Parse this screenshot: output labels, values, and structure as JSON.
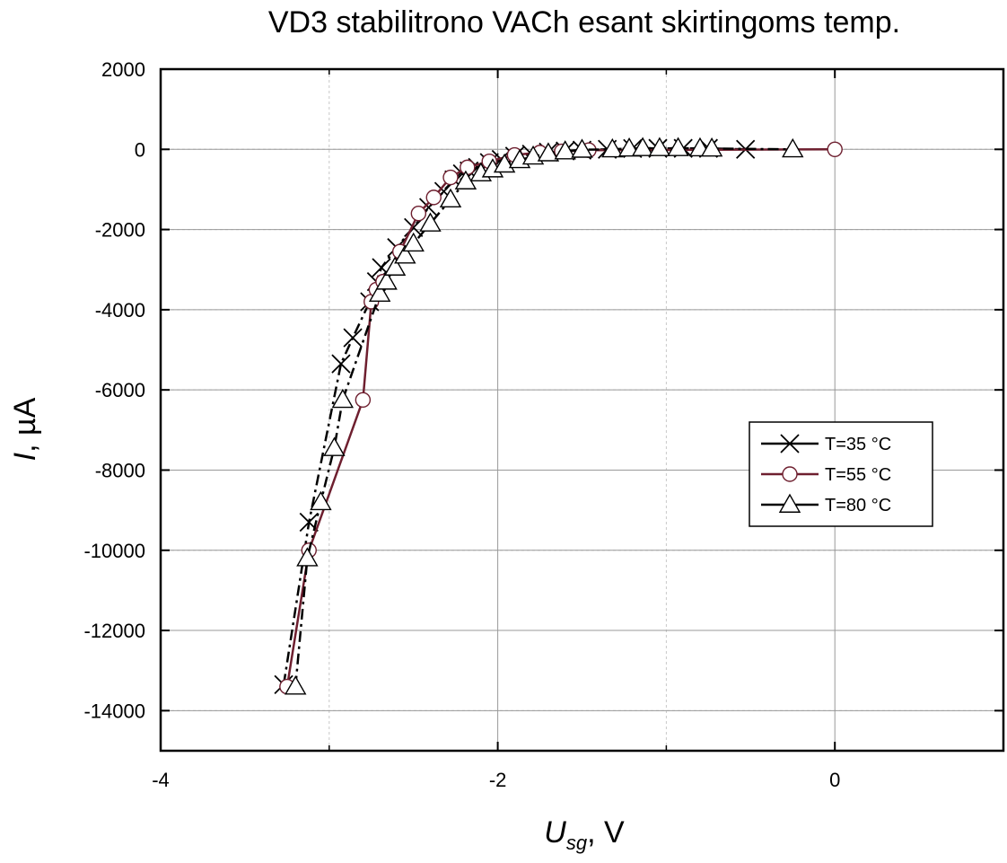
{
  "chart_data": {
    "type": "line",
    "title": "VD3 stabilitrono VACh esant skirtingoms temp.",
    "xlabel": {
      "var": "U",
      "sub": "sg",
      "unit": ", V"
    },
    "ylabel": {
      "var": "I",
      "unit": ", µA"
    },
    "xlim": [
      -4,
      1
    ],
    "ylim": [
      -15000,
      2000
    ],
    "x_ticks": [
      -4,
      -2,
      0
    ],
    "x_tick_labels": [
      "-4",
      "-2",
      "0"
    ],
    "y_ticks": [
      2000,
      0,
      -2000,
      -4000,
      -6000,
      -8000,
      -10000,
      -12000,
      -14000
    ],
    "y_tick_labels": [
      "2000",
      "0",
      "-2000",
      "-4000",
      "-6000",
      "-8000",
      "-10000",
      "-12000",
      "-14000"
    ],
    "grid": true,
    "legend_position": "right-middle",
    "series": [
      {
        "name": "T=35 °C",
        "marker": "x",
        "color": "#000000",
        "dash": "12,5,3,5",
        "x": [
          -3.27,
          -3.12,
          -2.93,
          -2.86,
          -2.76,
          -2.72,
          -2.69,
          -2.6,
          -2.5,
          -2.41,
          -2.32,
          -2.26,
          -2.21,
          -2.17,
          -2.12,
          -2.05,
          -1.98,
          -1.9,
          -1.8,
          -1.7,
          -1.6,
          -1.5,
          -1.35,
          -1.2,
          -1.05,
          -0.9,
          -0.75,
          -0.53
        ],
        "y": [
          -13350,
          -9300,
          -5350,
          -4700,
          -3800,
          -3300,
          -2950,
          -2450,
          -1950,
          -1450,
          -1050,
          -760,
          -610,
          -540,
          -450,
          -330,
          -250,
          -170,
          -120,
          -70,
          -40,
          -20,
          0,
          20,
          25,
          25,
          25,
          0
        ]
      },
      {
        "name": "T=55 °C",
        "marker": "circle",
        "color": "#6e1f2f",
        "dash": "",
        "x": [
          -3.25,
          -3.12,
          -2.8,
          -2.75,
          -2.72,
          -2.68,
          -2.58,
          -2.47,
          -2.38,
          -2.28,
          -2.18,
          -2.05,
          -1.9,
          -1.75,
          -1.62,
          -1.46,
          0
        ],
        "y": [
          -13400,
          -10000,
          -6250,
          -3800,
          -3500,
          -3300,
          -2550,
          -1600,
          -1200,
          -700,
          -450,
          -300,
          -140,
          -80,
          -50,
          -20,
          0
        ]
      },
      {
        "name": "T=80 °C",
        "marker": "triangle",
        "color": "#000000",
        "dash": "12,5,3,5",
        "x": [
          -3.2,
          -3.13,
          -3.05,
          -2.97,
          -2.92,
          -2.7,
          -2.66,
          -2.61,
          -2.55,
          -2.5,
          -2.4,
          -2.28,
          -2.19,
          -2.1,
          -2.03,
          -1.96,
          -1.87,
          -1.79,
          -1.7,
          -1.6,
          -1.5,
          -1.32,
          -1.22,
          -1.14,
          -1.04,
          -0.93,
          -0.8,
          -0.73,
          -0.25
        ],
        "y": [
          -13400,
          -10200,
          -8800,
          -7450,
          -6250,
          -3600,
          -3300,
          -2950,
          -2650,
          -2350,
          -1850,
          -1250,
          -800,
          -600,
          -500,
          -380,
          -270,
          -180,
          -100,
          -50,
          -10,
          0,
          20,
          30,
          30,
          30,
          25,
          20,
          0
        ]
      }
    ]
  }
}
